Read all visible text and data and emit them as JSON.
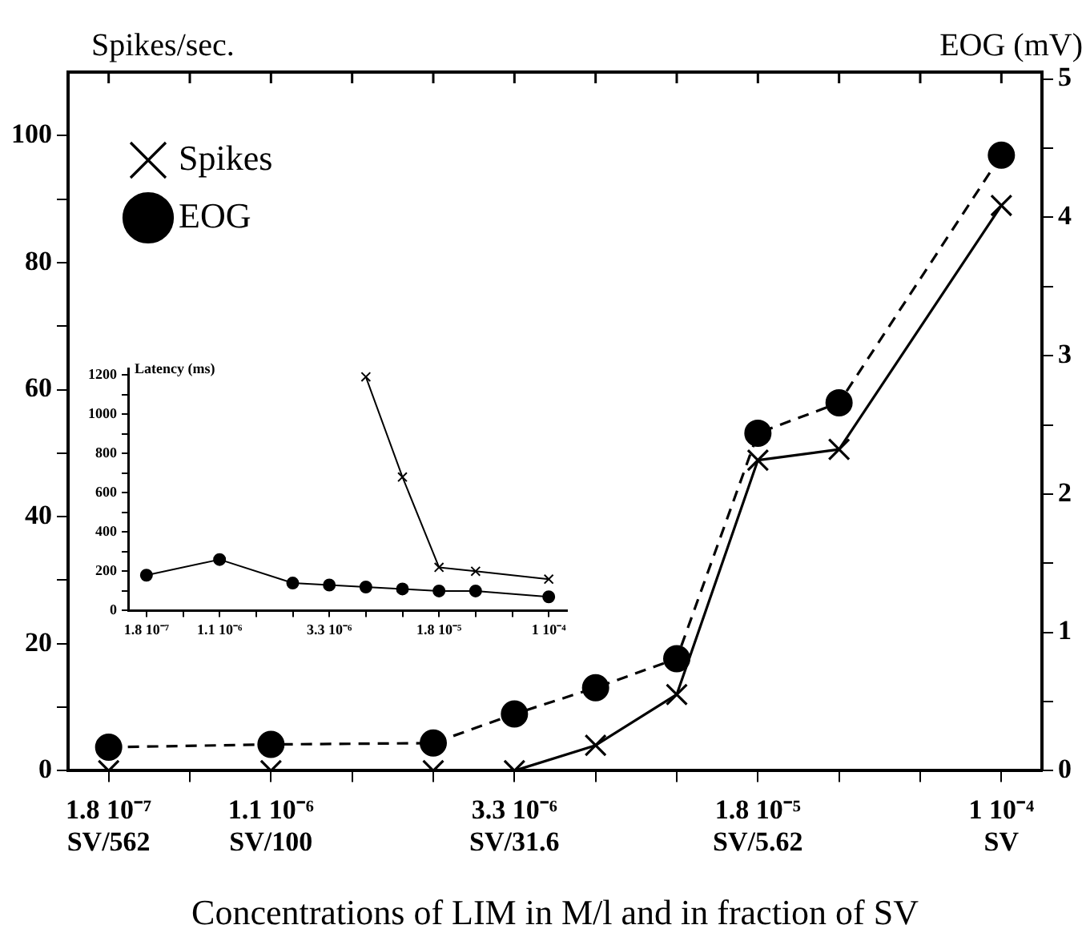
{
  "chart_data": [
    {
      "type": "line",
      "xlabel": "Concentrations of LIM in M/l and in fraction of SV",
      "ylabel": "Spikes/sec.",
      "y2label": "EOG (mV)",
      "categories": [
        "1.8 10⁻⁷\nSV/562",
        null,
        "1.1 10⁻⁶\nSV/100",
        null,
        null,
        "3.3 10⁻⁶\nSV/31.6",
        null,
        null,
        "1.8 10⁻⁵\nSV/5.62",
        null,
        null,
        "1 10⁻⁴\nSV"
      ],
      "series": [
        {
          "name": "Spikes",
          "color": "#000000",
          "marker": "cross",
          "line_style": "solid",
          "values": [
            0,
            null,
            0,
            null,
            0,
            0,
            4,
            12,
            48.9,
            50.6,
            null,
            89
          ]
        },
        {
          "name": "EOG",
          "color": "#000000",
          "marker": "circle",
          "line_style": "dashed",
          "axis": "y2",
          "values": [
            0.17,
            null,
            0.19,
            null,
            0.2,
            0.41,
            0.6,
            0.81,
            2.44,
            2.66,
            null,
            4.45
          ]
        }
      ],
      "ylim": [
        0,
        110
      ],
      "yticks": [
        0,
        {
          "value": 10,
          "label": null
        },
        20,
        {
          "value": 30,
          "label": null
        },
        40,
        {
          "value": 50,
          "label": null
        },
        60,
        {
          "value": 70,
          "label": null
        },
        80,
        {
          "value": 90,
          "label": null
        },
        100
      ],
      "y2lim": [
        0,
        5.05
      ],
      "y2ticks": [
        0,
        {
          "value": 0.5,
          "label": null
        },
        1,
        {
          "value": 1.5,
          "label": null
        },
        2,
        {
          "value": 2.5,
          "label": null
        },
        3,
        {
          "value": 3.5,
          "label": null
        },
        4,
        {
          "value": 4.5,
          "label": null
        },
        5
      ],
      "legend": "top left",
      "grid": false
    },
    {
      "type": "line",
      "ylabel": "Latency (ms)",
      "categories": [
        "1.8 10⁻⁷",
        null,
        "1.1 10⁻⁶",
        null,
        null,
        "3.3 10⁻⁶",
        null,
        null,
        "1.8 10⁻⁵",
        null,
        null,
        "1 10⁻⁴"
      ],
      "series": [
        {
          "color": "#000000",
          "marker": "circle",
          "line_style": "solid",
          "values": [
            180,
            null,
            260,
            null,
            140,
            130,
            120,
            110,
            100,
            100,
            null,
            70
          ]
        },
        {
          "color": "#000000",
          "marker": "cross",
          "line_style": "solid",
          "values": [
            null,
            null,
            null,
            null,
            null,
            null,
            1190,
            680,
            220,
            200,
            null,
            160
          ]
        }
      ],
      "ylim": [
        0,
        1230
      ],
      "yticks": [
        0,
        {
          "value": 100,
          "label": null
        },
        200,
        {
          "value": 300,
          "label": null
        },
        400,
        {
          "value": 500,
          "label": null
        },
        600,
        {
          "value": 700,
          "label": null
        },
        800,
        {
          "value": 900,
          "label": null
        },
        1000,
        {
          "value": 1100,
          "label": null
        },
        1200
      ],
      "legend": false,
      "grid": false
    }
  ]
}
